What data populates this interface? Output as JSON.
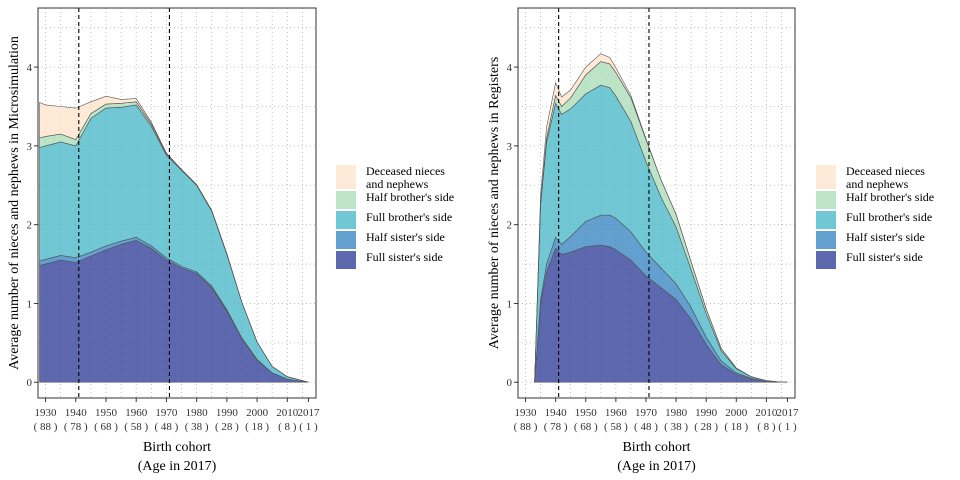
{
  "colors": {
    "deceased": "#fde3c8",
    "half_brother": "#a8dbb6",
    "full_brother": "#42b6c6",
    "half_sister": "#2f7fbf",
    "full_sister": "#283593",
    "panel_border": "#333333",
    "grid": "#b3b3b3"
  },
  "legend": {
    "items": [
      {
        "key": "deceased",
        "lines": [
          "Deceased nieces",
          " and nephews"
        ]
      },
      {
        "key": "half_brother",
        "lines": [
          "Half brother's side"
        ]
      },
      {
        "key": "full_brother",
        "lines": [
          "Full brother's side"
        ]
      },
      {
        "key": "half_sister",
        "lines": [
          "Half sister's side"
        ]
      },
      {
        "key": "full_sister",
        "lines": [
          "Full sister's side"
        ]
      }
    ]
  },
  "chart_data": [
    {
      "type": "area",
      "stacked": true,
      "ylabel": "Average number of nieces and nephews in Microsimulation",
      "xlabel": "Birth cohort",
      "xlabel2": "(Age in 2017)",
      "xlim": [
        1927.5,
        2019.5
      ],
      "ylim": [
        -0.2,
        4.75
      ],
      "yticks": [
        0,
        1,
        2,
        3,
        4
      ],
      "xticks": [
        {
          "year": 1930,
          "age": "( 88 )"
        },
        {
          "year": 1940,
          "age": "( 78 )"
        },
        {
          "year": 1950,
          "age": "( 68 )"
        },
        {
          "year": 1960,
          "age": "( 58 )"
        },
        {
          "year": 1970,
          "age": "( 48 )"
        },
        {
          "year": 1980,
          "age": "( 38 )"
        },
        {
          "year": 1990,
          "age": "( 28 )"
        },
        {
          "year": 2000,
          "age": "( 18 )"
        },
        {
          "year": 2010,
          "age": "( 8 )"
        },
        {
          "year": 2017,
          "age": "( 1 )"
        }
      ],
      "vlines": [
        1941,
        1971
      ],
      "grid": true,
      "legend_position": "right",
      "x": [
        1928,
        1930,
        1935,
        1940,
        1945,
        1950,
        1955,
        1960,
        1965,
        1970,
        1975,
        1980,
        1985,
        1990,
        1995,
        2000,
        2005,
        2010,
        2015,
        2017
      ],
      "series": [
        {
          "name": "Full sister's side",
          "key": "full_sister",
          "values": [
            1.48,
            1.5,
            1.55,
            1.52,
            1.6,
            1.68,
            1.75,
            1.8,
            1.7,
            1.55,
            1.45,
            1.38,
            1.2,
            0.9,
            0.55,
            0.28,
            0.12,
            0.04,
            0.01,
            0.0
          ]
        },
        {
          "name": "Half sister's side",
          "key": "half_sister",
          "values": [
            0.06,
            0.06,
            0.06,
            0.06,
            0.05,
            0.05,
            0.04,
            0.04,
            0.03,
            0.03,
            0.02,
            0.02,
            0.02,
            0.02,
            0.01,
            0.01,
            0.0,
            0.0,
            0.0,
            0.0
          ]
        },
        {
          "name": "Full brother's side",
          "key": "full_brother",
          "values": [
            1.44,
            1.44,
            1.44,
            1.42,
            1.7,
            1.75,
            1.7,
            1.68,
            1.52,
            1.3,
            1.22,
            1.1,
            0.95,
            0.7,
            0.45,
            0.22,
            0.08,
            0.03,
            0.01,
            0.0
          ]
        },
        {
          "name": "Half brother's side",
          "key": "half_brother",
          "values": [
            0.12,
            0.12,
            0.1,
            0.08,
            0.06,
            0.05,
            0.05,
            0.04,
            0.03,
            0.02,
            0.01,
            0.01,
            0.01,
            0.01,
            0.0,
            0.0,
            0.0,
            0.0,
            0.0,
            0.0
          ]
        },
        {
          "name": "Deceased nieces and nephews",
          "key": "deceased",
          "values": [
            0.45,
            0.4,
            0.35,
            0.4,
            0.15,
            0.1,
            0.05,
            0.04,
            0.02,
            0.01,
            0.0,
            0.0,
            0.0,
            0.0,
            0.0,
            0.0,
            0.0,
            0.0,
            0.0,
            0.0
          ]
        }
      ]
    },
    {
      "type": "area",
      "stacked": true,
      "ylabel": "Average number of nieces and nephews in Registers",
      "xlabel": "Birth cohort",
      "xlabel2": "(Age in 2017)",
      "xlim": [
        1927.5,
        2019.5
      ],
      "ylim": [
        -0.2,
        4.75
      ],
      "yticks": [
        0,
        1,
        2,
        3,
        4
      ],
      "xticks": [
        {
          "year": 1930,
          "age": "( 88 )"
        },
        {
          "year": 1940,
          "age": "( 78 )"
        },
        {
          "year": 1950,
          "age": "( 68 )"
        },
        {
          "year": 1960,
          "age": "( 58 )"
        },
        {
          "year": 1970,
          "age": "( 48 )"
        },
        {
          "year": 1980,
          "age": "( 38 )"
        },
        {
          "year": 1990,
          "age": "( 28 )"
        },
        {
          "year": 2000,
          "age": "( 18 )"
        },
        {
          "year": 2010,
          "age": "( 8 )"
        },
        {
          "year": 2017,
          "age": "( 1 )"
        }
      ],
      "vlines": [
        1941,
        1971
      ],
      "grid": true,
      "legend_position": "right",
      "x": [
        1933,
        1935,
        1937,
        1940,
        1942,
        1945,
        1950,
        1955,
        1958,
        1960,
        1965,
        1970,
        1975,
        1980,
        1985,
        1990,
        1995,
        2000,
        2005,
        2010,
        2015,
        2017
      ],
      "series": [
        {
          "name": "Full sister's side",
          "key": "full_sister",
          "values": [
            0.0,
            1.0,
            1.4,
            1.7,
            1.62,
            1.65,
            1.72,
            1.74,
            1.72,
            1.68,
            1.55,
            1.35,
            1.2,
            1.05,
            0.8,
            0.48,
            0.22,
            0.1,
            0.04,
            0.01,
            0.0,
            0.0
          ]
        },
        {
          "name": "Half sister's side",
          "key": "half_sister",
          "values": [
            0.0,
            0.05,
            0.1,
            0.14,
            0.13,
            0.2,
            0.32,
            0.38,
            0.4,
            0.4,
            0.36,
            0.3,
            0.25,
            0.2,
            0.15,
            0.09,
            0.05,
            0.02,
            0.01,
            0.0,
            0.0,
            0.0
          ]
        },
        {
          "name": "Full brother's side",
          "key": "full_brother",
          "values": [
            0.0,
            1.2,
            1.55,
            1.7,
            1.65,
            1.62,
            1.62,
            1.65,
            1.62,
            1.55,
            1.4,
            1.15,
            0.9,
            0.72,
            0.48,
            0.3,
            0.13,
            0.05,
            0.02,
            0.01,
            0.0,
            0.0
          ]
        },
        {
          "name": "Half brother's side",
          "key": "half_brother",
          "values": [
            0.0,
            0.03,
            0.05,
            0.1,
            0.1,
            0.14,
            0.24,
            0.3,
            0.3,
            0.3,
            0.3,
            0.28,
            0.22,
            0.16,
            0.1,
            0.06,
            0.03,
            0.01,
            0.0,
            0.0,
            0.0,
            0.0
          ]
        },
        {
          "name": "Deceased nieces and nephews",
          "key": "deceased",
          "values": [
            0.0,
            0.1,
            0.14,
            0.16,
            0.12,
            0.1,
            0.1,
            0.1,
            0.08,
            0.06,
            0.03,
            0.01,
            0.0,
            0.0,
            0.0,
            0.0,
            0.0,
            0.0,
            0.0,
            0.0,
            0.0,
            0.0
          ]
        }
      ]
    }
  ]
}
